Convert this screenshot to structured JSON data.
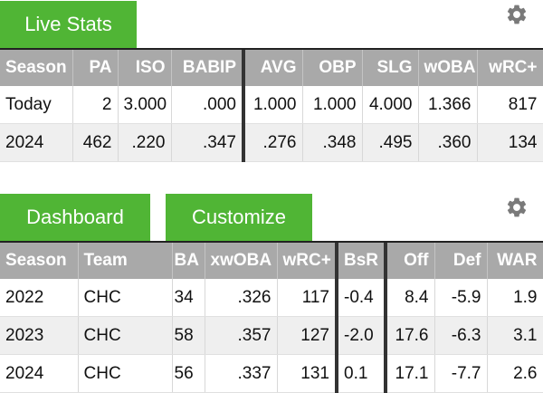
{
  "live": {
    "tab_label": "Live Stats",
    "headers": [
      "Season",
      "PA",
      "ISO",
      "BABIP",
      "AVG",
      "OBP",
      "SLG",
      "wOBA",
      "wRC+"
    ],
    "rows": [
      [
        "Today",
        "2",
        "3.000",
        ".000",
        "1.000",
        "1.000",
        "4.000",
        "1.366",
        "817"
      ],
      [
        "2024",
        "462",
        ".220",
        ".347",
        ".276",
        ".348",
        ".495",
        ".360",
        "134"
      ]
    ]
  },
  "dashboard": {
    "tabs": [
      "Dashboard",
      "Customize"
    ],
    "headers": [
      "Season",
      "Team",
      "BA",
      "xwOBA",
      "wRC+",
      "BsR",
      "Off",
      "Def",
      "WAR"
    ],
    "rows": [
      [
        "2022",
        "CHC",
        "34",
        ".326",
        "117",
        "-0.4",
        "8.4",
        "-5.9",
        "1.9"
      ],
      [
        "2023",
        "CHC",
        "58",
        ".357",
        "127",
        "-2.0",
        "17.6",
        "-6.3",
        "3.1"
      ],
      [
        "2024",
        "CHC",
        "56",
        ".337",
        "131",
        "0.1",
        "17.1",
        "-7.7",
        "2.6"
      ]
    ]
  },
  "icons": {
    "settings": "gear-icon"
  },
  "colors": {
    "accent_green": "#50b535",
    "header_gray": "#a9a9a9",
    "row_alt": "#efefef"
  }
}
